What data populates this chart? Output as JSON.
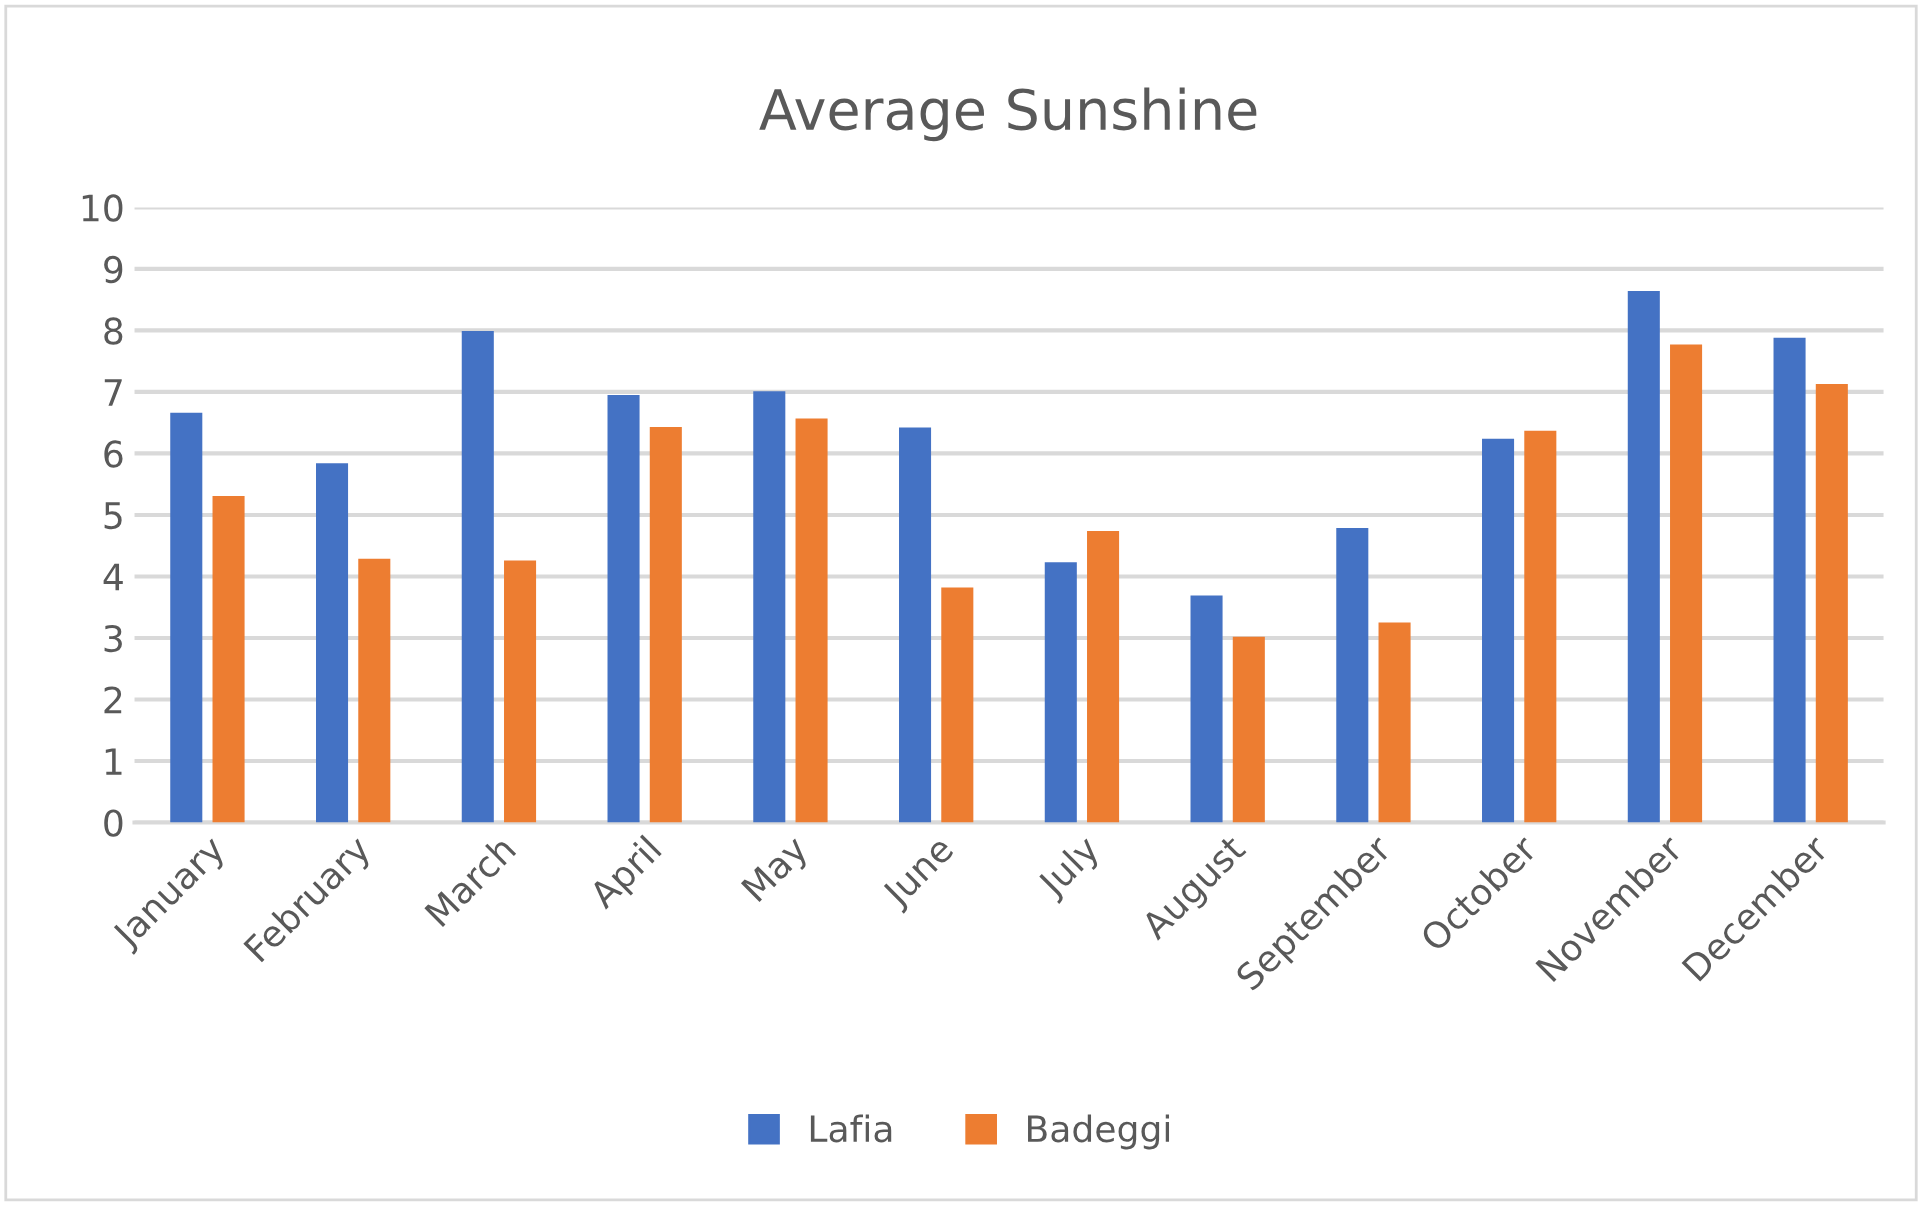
{
  "chart_data": {
    "type": "bar",
    "title": "Average Sunshine",
    "categories": [
      "January",
      "February",
      "March",
      "April",
      "May",
      "June",
      "July",
      "August",
      "September",
      "October",
      "November",
      "December"
    ],
    "series": [
      {
        "name": "Lafia",
        "color": "#4472c4",
        "values": [
          6.66,
          5.84,
          7.99,
          6.95,
          7.01,
          6.42,
          4.23,
          3.69,
          4.79,
          6.24,
          8.64,
          7.88
        ]
      },
      {
        "name": "Badeggi",
        "color": "#ed7d31",
        "values": [
          5.31,
          4.29,
          4.26,
          6.43,
          6.57,
          3.82,
          4.74,
          3.02,
          3.25,
          6.37,
          7.77,
          7.13
        ]
      }
    ],
    "ylim": [
      0,
      10
    ],
    "yticks": [
      0,
      1,
      2,
      3,
      4,
      5,
      6,
      7,
      8,
      9,
      10
    ],
    "grid": "y",
    "legend": "bottom"
  }
}
